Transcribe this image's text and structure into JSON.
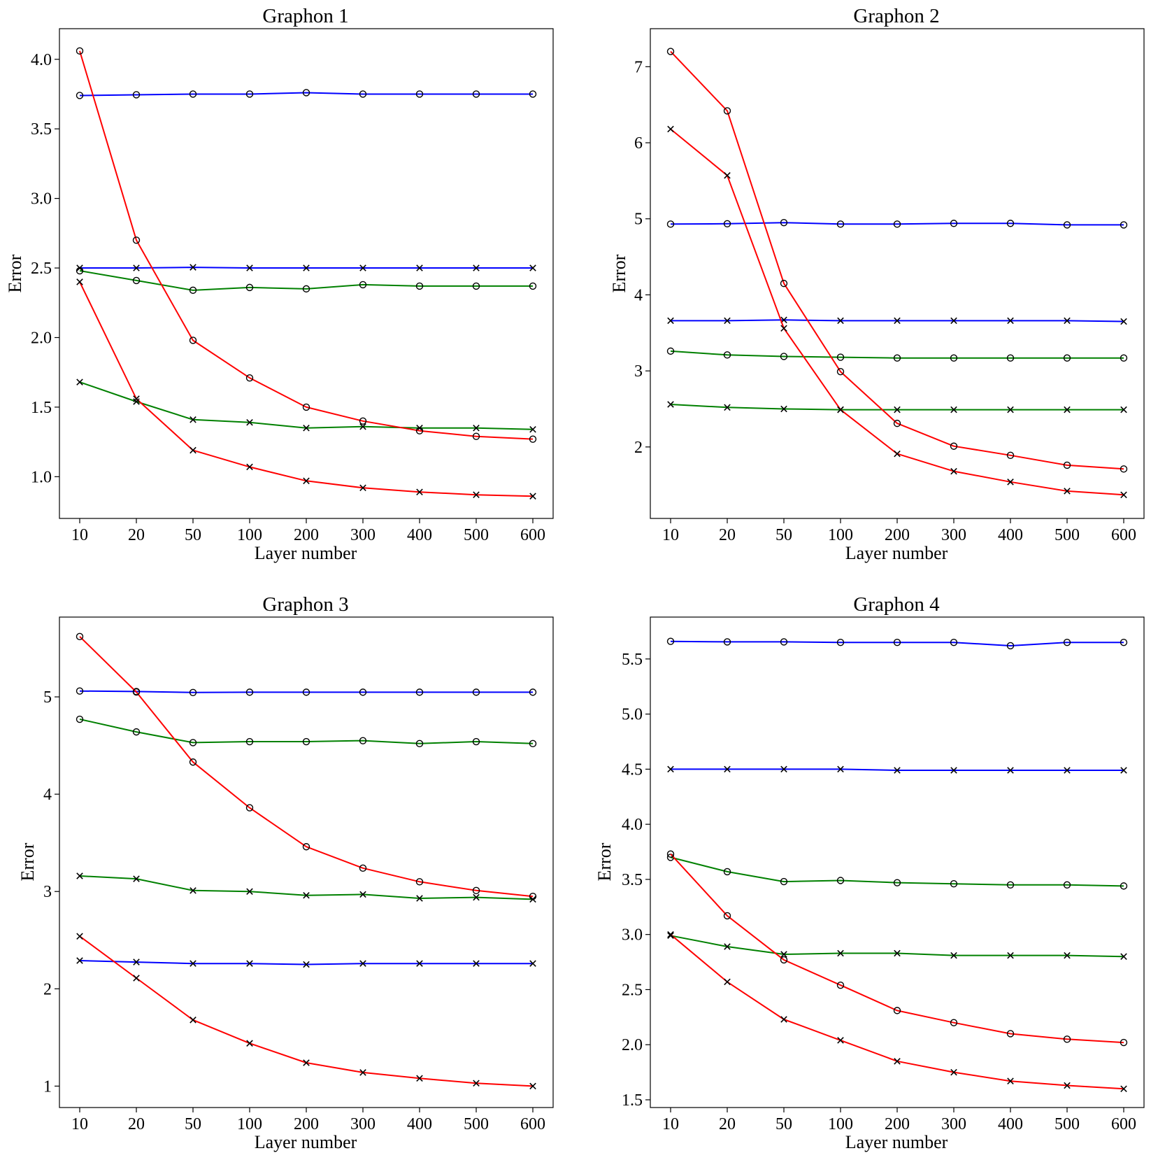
{
  "figure": {
    "colors": {
      "blue": "#0000ff",
      "green": "#008000",
      "red": "#ff0000",
      "marker": "#000000"
    }
  },
  "chart_data": [
    {
      "type": "line",
      "title": "Graphon 1",
      "xlabel": "Layer number",
      "ylabel": "Error",
      "categories": [
        "10",
        "20",
        "50",
        "100",
        "200",
        "300",
        "400",
        "500",
        "600"
      ],
      "ylim": [
        0.7,
        4.22
      ],
      "yticks": [
        1.0,
        1.5,
        2.0,
        2.5,
        3.0,
        3.5,
        4.0
      ],
      "ytick_labels": [
        "1.0",
        "1.5",
        "2.0",
        "2.5",
        "3.0",
        "3.5",
        "4.0"
      ],
      "series": [
        {
          "color": "blue",
          "marker": "o",
          "values": [
            3.74,
            3.745,
            3.75,
            3.75,
            3.76,
            3.75,
            3.75,
            3.75,
            3.75
          ]
        },
        {
          "color": "blue",
          "marker": "x",
          "values": [
            2.5,
            2.5,
            2.505,
            2.5,
            2.5,
            2.5,
            2.5,
            2.5,
            2.5
          ]
        },
        {
          "color": "green",
          "marker": "o",
          "values": [
            2.48,
            2.41,
            2.34,
            2.36,
            2.35,
            2.38,
            2.37,
            2.37,
            2.37
          ]
        },
        {
          "color": "green",
          "marker": "x",
          "values": [
            1.68,
            1.54,
            1.41,
            1.39,
            1.35,
            1.36,
            1.35,
            1.35,
            1.34
          ]
        },
        {
          "color": "red",
          "marker": "o",
          "values": [
            4.06,
            2.7,
            1.98,
            1.71,
            1.5,
            1.4,
            1.33,
            1.29,
            1.27
          ]
        },
        {
          "color": "red",
          "marker": "x",
          "values": [
            2.4,
            1.56,
            1.19,
            1.07,
            0.97,
            0.92,
            0.89,
            0.87,
            0.86
          ]
        }
      ]
    },
    {
      "type": "line",
      "title": "Graphon 2",
      "xlabel": "Layer number",
      "ylabel": "Error",
      "categories": [
        "10",
        "20",
        "50",
        "100",
        "200",
        "300",
        "400",
        "500",
        "600"
      ],
      "ylim": [
        1.06,
        7.5
      ],
      "yticks": [
        2,
        3,
        4,
        5,
        6,
        7
      ],
      "ytick_labels": [
        "2",
        "3",
        "4",
        "5",
        "6",
        "7"
      ],
      "series": [
        {
          "color": "blue",
          "marker": "o",
          "values": [
            4.93,
            4.935,
            4.95,
            4.93,
            4.93,
            4.94,
            4.94,
            4.92,
            4.92
          ]
        },
        {
          "color": "blue",
          "marker": "x",
          "values": [
            3.66,
            3.66,
            3.67,
            3.66,
            3.66,
            3.66,
            3.66,
            3.66,
            3.65
          ]
        },
        {
          "color": "green",
          "marker": "o",
          "values": [
            3.26,
            3.21,
            3.19,
            3.18,
            3.17,
            3.17,
            3.17,
            3.17,
            3.17
          ]
        },
        {
          "color": "green",
          "marker": "x",
          "values": [
            2.56,
            2.52,
            2.5,
            2.49,
            2.49,
            2.49,
            2.49,
            2.49,
            2.49
          ]
        },
        {
          "color": "red",
          "marker": "o",
          "values": [
            7.2,
            6.42,
            4.15,
            2.99,
            2.31,
            2.01,
            1.89,
            1.76,
            1.71
          ]
        },
        {
          "color": "red",
          "marker": "x",
          "values": [
            6.18,
            5.57,
            3.56,
            2.49,
            1.91,
            1.68,
            1.54,
            1.42,
            1.37
          ]
        }
      ]
    },
    {
      "type": "line",
      "title": "Graphon 3",
      "xlabel": "Layer number",
      "ylabel": "Error",
      "categories": [
        "10",
        "20",
        "50",
        "100",
        "200",
        "300",
        "400",
        "500",
        "600"
      ],
      "ylim": [
        0.78,
        5.82
      ],
      "yticks": [
        1,
        2,
        3,
        4,
        5
      ],
      "ytick_labels": [
        "1",
        "2",
        "3",
        "4",
        "5"
      ],
      "series": [
        {
          "color": "blue",
          "marker": "o",
          "values": [
            5.06,
            5.055,
            5.045,
            5.048,
            5.048,
            5.048,
            5.048,
            5.048,
            5.048
          ]
        },
        {
          "color": "blue",
          "marker": "x",
          "values": [
            2.29,
            2.275,
            2.26,
            2.26,
            2.25,
            2.26,
            2.26,
            2.26,
            2.26
          ]
        },
        {
          "color": "green",
          "marker": "o",
          "values": [
            4.77,
            4.64,
            4.53,
            4.54,
            4.54,
            4.55,
            4.52,
            4.54,
            4.52
          ]
        },
        {
          "color": "green",
          "marker": "x",
          "values": [
            3.16,
            3.13,
            3.01,
            3.0,
            2.96,
            2.97,
            2.93,
            2.94,
            2.92
          ]
        },
        {
          "color": "red",
          "marker": "o",
          "values": [
            5.62,
            5.05,
            4.33,
            3.86,
            3.46,
            3.24,
            3.1,
            3.01,
            2.95
          ]
        },
        {
          "color": "red",
          "marker": "x",
          "values": [
            2.54,
            2.11,
            1.68,
            1.44,
            1.24,
            1.14,
            1.08,
            1.03,
            1.0
          ]
        }
      ]
    },
    {
      "type": "line",
      "title": "Graphon 4",
      "xlabel": "Layer number",
      "ylabel": "Error",
      "categories": [
        "10",
        "20",
        "50",
        "100",
        "200",
        "300",
        "400",
        "500",
        "600"
      ],
      "ylim": [
        1.43,
        5.88
      ],
      "yticks": [
        1.5,
        2.0,
        2.5,
        3.0,
        3.5,
        4.0,
        4.5,
        5.0,
        5.5
      ],
      "ytick_labels": [
        "1.5",
        "2.0",
        "2.5",
        "3.0",
        "3.5",
        "4.0",
        "4.5",
        "5.0",
        "5.5"
      ],
      "series": [
        {
          "color": "blue",
          "marker": "o",
          "values": [
            5.66,
            5.655,
            5.655,
            5.65,
            5.65,
            5.65,
            5.62,
            5.65,
            5.65
          ]
        },
        {
          "color": "blue",
          "marker": "x",
          "values": [
            4.5,
            4.5,
            4.5,
            4.5,
            4.49,
            4.49,
            4.49,
            4.49,
            4.49
          ]
        },
        {
          "color": "green",
          "marker": "o",
          "values": [
            3.7,
            3.57,
            3.48,
            3.49,
            3.47,
            3.46,
            3.45,
            3.45,
            3.44
          ]
        },
        {
          "color": "green",
          "marker": "x",
          "values": [
            2.99,
            2.89,
            2.82,
            2.83,
            2.83,
            2.81,
            2.81,
            2.81,
            2.8
          ]
        },
        {
          "color": "red",
          "marker": "o",
          "values": [
            3.73,
            3.17,
            2.77,
            2.54,
            2.31,
            2.2,
            2.1,
            2.05,
            2.02
          ]
        },
        {
          "color": "red",
          "marker": "x",
          "values": [
            3.0,
            2.57,
            2.23,
            2.04,
            1.85,
            1.75,
            1.67,
            1.63,
            1.6
          ]
        }
      ]
    }
  ]
}
